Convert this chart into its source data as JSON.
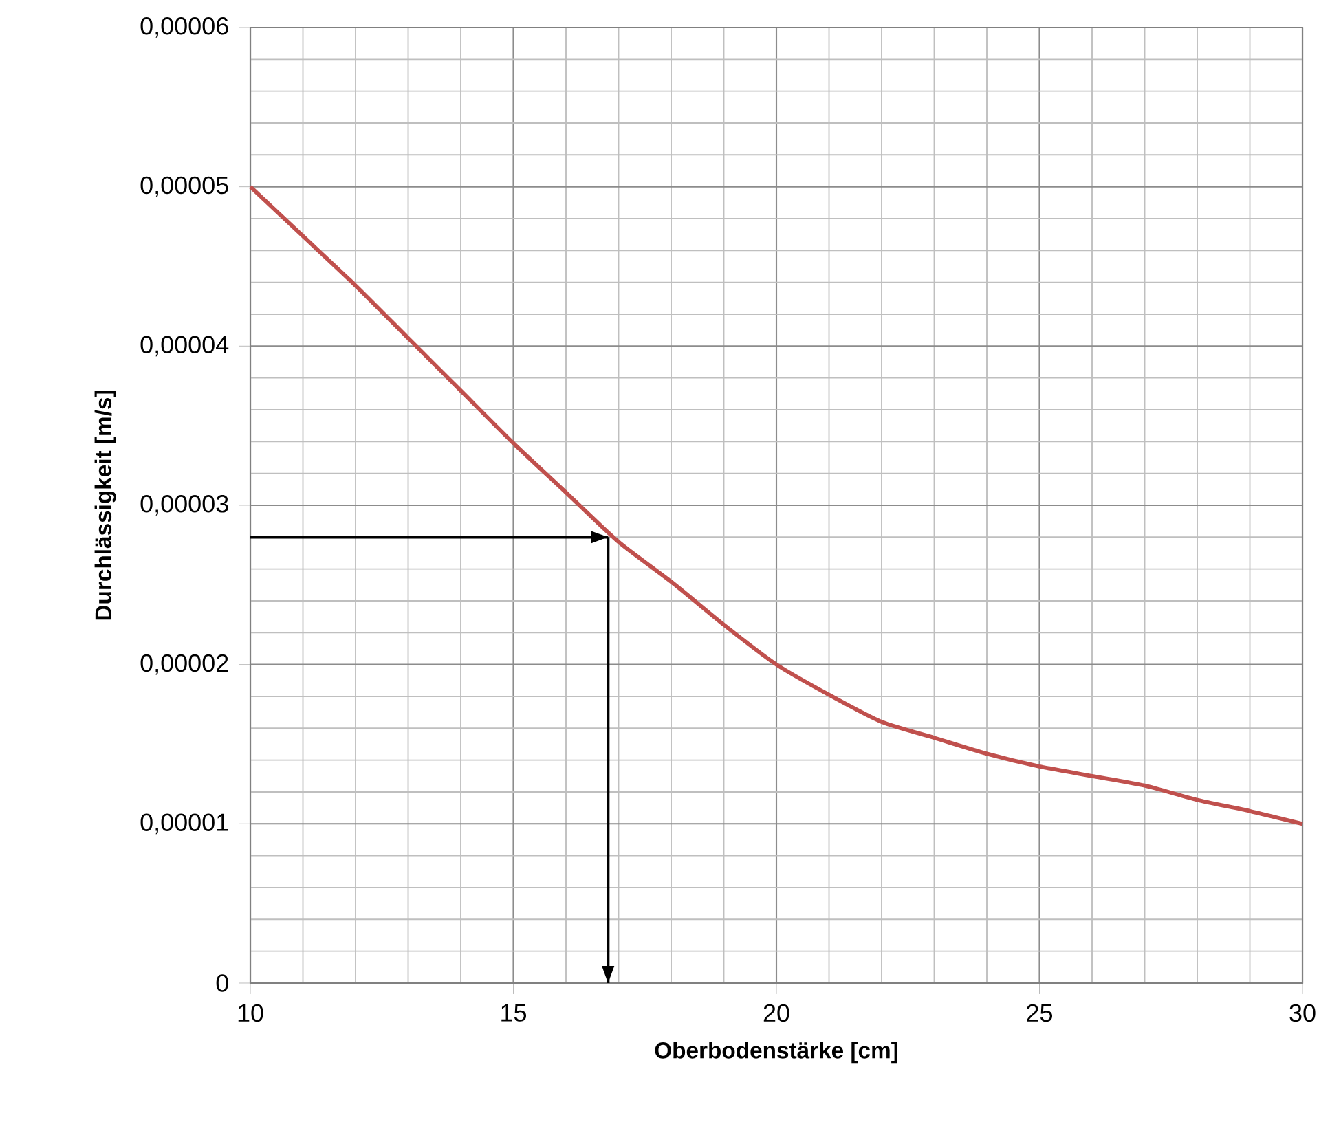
{
  "chart_data": {
    "type": "line",
    "xlabel": "Oberbodenstärke [cm]",
    "ylabel": "Durchlässigkeit [m/s]",
    "xlim": [
      10,
      30
    ],
    "xticks": [
      10,
      15,
      20,
      25,
      30
    ],
    "ylim": [
      0,
      6e-05
    ],
    "yticks": [
      0,
      {
        "value": 1e-05,
        "label": "0,00001"
      },
      {
        "value": 2e-05,
        "label": "0,00002"
      },
      {
        "value": 3e-05,
        "label": "0,00003"
      },
      {
        "value": 4e-05,
        "label": "0,00004"
      },
      {
        "value": 5e-05,
        "label": "0,00005"
      },
      {
        "value": 6e-05,
        "label": "0,00006"
      }
    ],
    "grid": true,
    "marker": "none",
    "series": [
      {
        "color": "#c0504d",
        "x": [
          10,
          11,
          12,
          13,
          14,
          15,
          16,
          17,
          18,
          19,
          20,
          21,
          22,
          23,
          24,
          25,
          26,
          27,
          28,
          29,
          30
        ],
        "values": [
          5e-05,
          4.69e-05,
          4.38e-05,
          4.05e-05,
          3.72e-05,
          3.39e-05,
          3.08e-05,
          2.77e-05,
          2.52e-05,
          2.25e-05,
          2e-05,
          1.81e-05,
          1.64e-05,
          1.54e-05,
          1.44e-05,
          1.36e-05,
          1.3e-05,
          1.24e-05,
          1.15e-05,
          1.08e-05,
          1e-05
        ]
      },
      {
        "color": "#000000",
        "x": [
          10,
          16.8
        ],
        "values": [
          2.8e-05,
          2.8e-05
        ]
      },
      {
        "color": "#000000",
        "x": [
          16.8,
          16.8
        ],
        "values": [
          2.8e-05,
          0
        ]
      }
    ]
  }
}
